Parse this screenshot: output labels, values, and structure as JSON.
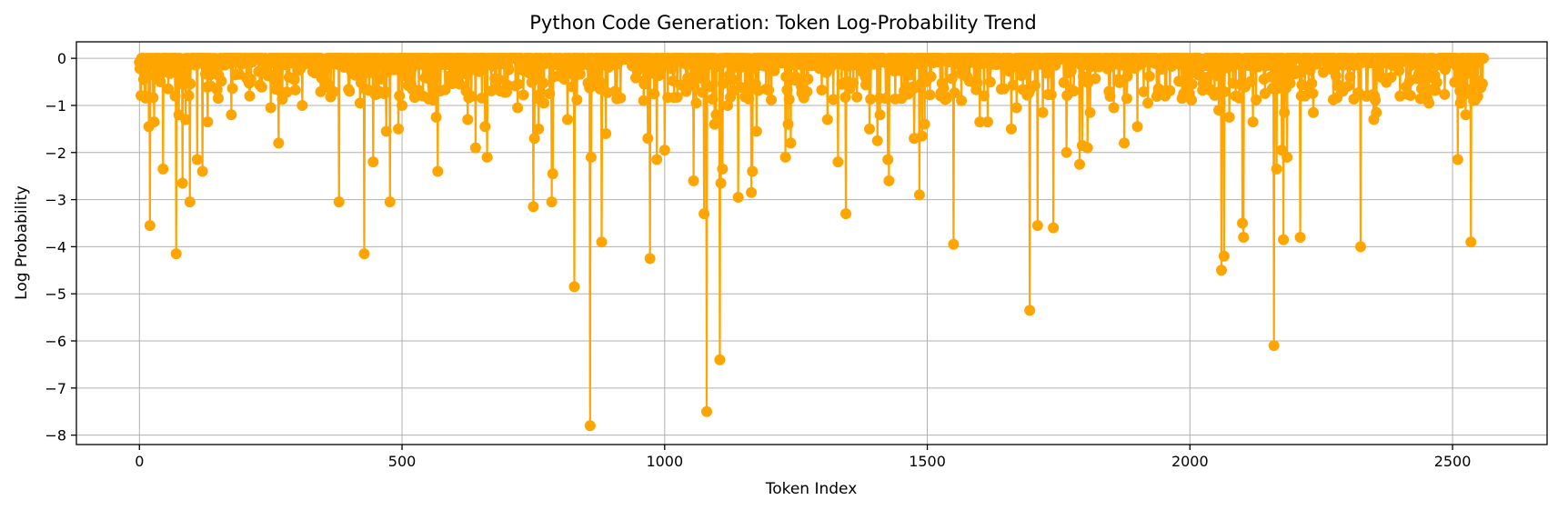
{
  "chart_data": {
    "type": "line",
    "title": "Python Code Generation: Token Log-Probability Trend",
    "xlabel": "Token Index",
    "ylabel": "Log Probability",
    "xlim": [
      -120,
      2680
    ],
    "ylim": [
      -8.2,
      0.35
    ],
    "xticks": [
      0,
      500,
      1000,
      1500,
      2000,
      2500
    ],
    "xtick_labels": [
      "0",
      "500",
      "1000",
      "1500",
      "2000",
      "2500"
    ],
    "yticks": [
      0,
      -1,
      -2,
      -3,
      -4,
      -5,
      -6,
      -7,
      -8
    ],
    "ytick_labels": [
      "0",
      "−1",
      "−2",
      "−3",
      "−4",
      "−5",
      "−6",
      "−7",
      "−8"
    ],
    "grid": true,
    "color": "#ffa500",
    "marker": "circle",
    "n_tokens": 2560,
    "baseline_value": 0,
    "notable_points": [
      {
        "x": 10,
        "y": -0.8
      },
      {
        "x": 18,
        "y": -1.45
      },
      {
        "x": 20,
        "y": -3.55
      },
      {
        "x": 28,
        "y": -1.35
      },
      {
        "x": 40,
        "y": -0.5
      },
      {
        "x": 45,
        "y": -2.35
      },
      {
        "x": 55,
        "y": -0.65
      },
      {
        "x": 68,
        "y": -0.8
      },
      {
        "x": 70,
        "y": -4.15
      },
      {
        "x": 75,
        "y": -1.2
      },
      {
        "x": 82,
        "y": -2.65
      },
      {
        "x": 88,
        "y": -1.3
      },
      {
        "x": 96,
        "y": -3.05
      },
      {
        "x": 110,
        "y": -2.15
      },
      {
        "x": 120,
        "y": -2.4
      },
      {
        "x": 130,
        "y": -1.35
      },
      {
        "x": 150,
        "y": -0.85
      },
      {
        "x": 175,
        "y": -1.2
      },
      {
        "x": 210,
        "y": -0.8
      },
      {
        "x": 250,
        "y": -1.05
      },
      {
        "x": 265,
        "y": -1.8
      },
      {
        "x": 295,
        "y": -0.45
      },
      {
        "x": 310,
        "y": -1.0
      },
      {
        "x": 380,
        "y": -3.05
      },
      {
        "x": 400,
        "y": -0.7
      },
      {
        "x": 420,
        "y": -0.95
      },
      {
        "x": 428,
        "y": -4.15
      },
      {
        "x": 445,
        "y": -2.2
      },
      {
        "x": 470,
        "y": -1.55
      },
      {
        "x": 477,
        "y": -3.05
      },
      {
        "x": 493,
        "y": -1.5
      },
      {
        "x": 500,
        "y": -1.0
      },
      {
        "x": 540,
        "y": -0.8
      },
      {
        "x": 565,
        "y": -1.25
      },
      {
        "x": 568,
        "y": -2.4
      },
      {
        "x": 610,
        "y": -0.55
      },
      {
        "x": 625,
        "y": -1.3
      },
      {
        "x": 640,
        "y": -1.9
      },
      {
        "x": 658,
        "y": -1.45
      },
      {
        "x": 662,
        "y": -2.1
      },
      {
        "x": 685,
        "y": -0.45
      },
      {
        "x": 720,
        "y": -1.05
      },
      {
        "x": 750,
        "y": -3.15
      },
      {
        "x": 752,
        "y": -1.7
      },
      {
        "x": 760,
        "y": -1.5
      },
      {
        "x": 770,
        "y": -0.95
      },
      {
        "x": 785,
        "y": -3.05
      },
      {
        "x": 787,
        "y": -2.45
      },
      {
        "x": 815,
        "y": -1.3
      },
      {
        "x": 828,
        "y": -4.85
      },
      {
        "x": 858,
        "y": -7.8
      },
      {
        "x": 860,
        "y": -2.1
      },
      {
        "x": 880,
        "y": -3.9
      },
      {
        "x": 888,
        "y": -1.6
      },
      {
        "x": 960,
        "y": -0.9
      },
      {
        "x": 968,
        "y": -1.7
      },
      {
        "x": 972,
        "y": -4.25
      },
      {
        "x": 985,
        "y": -2.15
      },
      {
        "x": 1000,
        "y": -1.95
      },
      {
        "x": 1055,
        "y": -2.6
      },
      {
        "x": 1060,
        "y": -0.95
      },
      {
        "x": 1075,
        "y": -3.3
      },
      {
        "x": 1080,
        "y": -7.5
      },
      {
        "x": 1095,
        "y": -1.4
      },
      {
        "x": 1098,
        "y": -1.2
      },
      {
        "x": 1105,
        "y": -6.4
      },
      {
        "x": 1107,
        "y": -2.65
      },
      {
        "x": 1110,
        "y": -2.35
      },
      {
        "x": 1120,
        "y": -1.0
      },
      {
        "x": 1140,
        "y": -2.95
      },
      {
        "x": 1165,
        "y": -2.85
      },
      {
        "x": 1167,
        "y": -2.4
      },
      {
        "x": 1175,
        "y": -1.55
      },
      {
        "x": 1230,
        "y": -2.1
      },
      {
        "x": 1235,
        "y": -1.4
      },
      {
        "x": 1240,
        "y": -1.8
      },
      {
        "x": 1310,
        "y": -1.3
      },
      {
        "x": 1330,
        "y": -2.2
      },
      {
        "x": 1345,
        "y": -3.3
      },
      {
        "x": 1390,
        "y": -1.5
      },
      {
        "x": 1405,
        "y": -1.75
      },
      {
        "x": 1410,
        "y": -1.2
      },
      {
        "x": 1425,
        "y": -2.15
      },
      {
        "x": 1427,
        "y": -2.6
      },
      {
        "x": 1460,
        "y": -0.6
      },
      {
        "x": 1475,
        "y": -1.7
      },
      {
        "x": 1485,
        "y": -2.9
      },
      {
        "x": 1490,
        "y": -1.65
      },
      {
        "x": 1495,
        "y": -1.4
      },
      {
        "x": 1550,
        "y": -3.95
      },
      {
        "x": 1565,
        "y": -0.9
      },
      {
        "x": 1600,
        "y": -1.35
      },
      {
        "x": 1615,
        "y": -1.35
      },
      {
        "x": 1660,
        "y": -1.5
      },
      {
        "x": 1670,
        "y": -1.05
      },
      {
        "x": 1695,
        "y": -5.35
      },
      {
        "x": 1710,
        "y": -3.55
      },
      {
        "x": 1720,
        "y": -1.15
      },
      {
        "x": 1740,
        "y": -3.6
      },
      {
        "x": 1765,
        "y": -2.0
      },
      {
        "x": 1790,
        "y": -2.25
      },
      {
        "x": 1795,
        "y": -1.85
      },
      {
        "x": 1805,
        "y": -1.9
      },
      {
        "x": 1810,
        "y": -1.15
      },
      {
        "x": 1855,
        "y": -1.05
      },
      {
        "x": 1875,
        "y": -1.8
      },
      {
        "x": 1900,
        "y": -1.45
      },
      {
        "x": 1920,
        "y": -0.95
      },
      {
        "x": 1995,
        "y": -0.75
      },
      {
        "x": 2055,
        "y": -1.1
      },
      {
        "x": 2060,
        "y": -4.5
      },
      {
        "x": 2065,
        "y": -4.2
      },
      {
        "x": 2075,
        "y": -1.25
      },
      {
        "x": 2100,
        "y": -3.5
      },
      {
        "x": 2102,
        "y": -3.8
      },
      {
        "x": 2120,
        "y": -1.35
      },
      {
        "x": 2160,
        "y": -6.1
      },
      {
        "x": 2165,
        "y": -2.35
      },
      {
        "x": 2175,
        "y": -1.95
      },
      {
        "x": 2178,
        "y": -3.85
      },
      {
        "x": 2180,
        "y": -1.15
      },
      {
        "x": 2185,
        "y": -2.1
      },
      {
        "x": 2210,
        "y": -3.8
      },
      {
        "x": 2235,
        "y": -1.15
      },
      {
        "x": 2325,
        "y": -4.0
      },
      {
        "x": 2350,
        "y": -1.3
      },
      {
        "x": 2355,
        "y": -1.15
      },
      {
        "x": 2400,
        "y": -0.8
      },
      {
        "x": 2455,
        "y": -0.95
      },
      {
        "x": 2510,
        "y": -2.15
      },
      {
        "x": 2515,
        "y": -0.95
      },
      {
        "x": 2525,
        "y": -1.2
      },
      {
        "x": 2535,
        "y": -3.9
      },
      {
        "x": 2540,
        "y": -0.9
      }
    ]
  }
}
